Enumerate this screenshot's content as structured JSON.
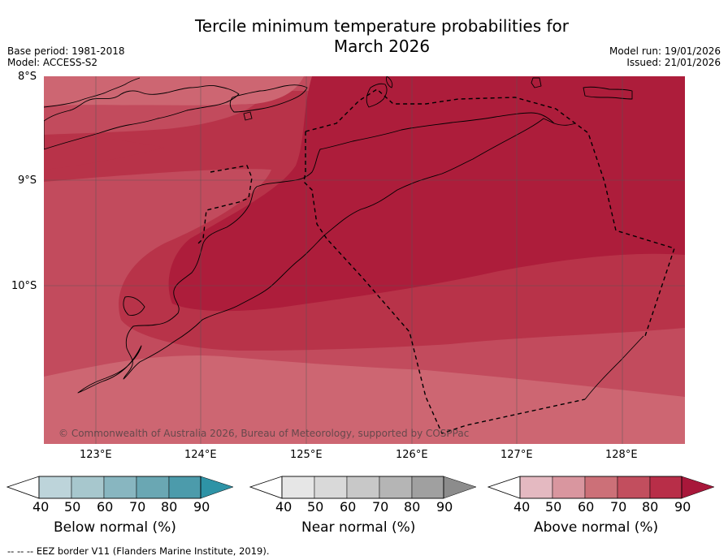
{
  "title": "Tercile minimum temperature probabilities for\nMarch 2026",
  "meta_left": [
    "Base period: 1981-2018",
    "Model: ACCESS-S2"
  ],
  "meta_right": [
    "Model run: 19/01/2026",
    "Issued: 21/01/2026"
  ],
  "latitude_labels": [
    "8°S",
    "9°S",
    "10°S"
  ],
  "longitude_labels": [
    "123°E",
    "124°E",
    "125°E",
    "126°E",
    "127°E",
    "128°E"
  ],
  "copyright": "© Commonwealth of Australia 2026, Bureau of Meteorology, supported by COSPPac",
  "legends": [
    {
      "label": "Below normal (%)",
      "ticks": [
        "40",
        "50",
        "60",
        "70",
        "80",
        "90"
      ],
      "colors": [
        "#bdd4da",
        "#a7c7cd",
        "#88b6c0",
        "#6aa7b3",
        "#4c9bab",
        "#2e93a6"
      ]
    },
    {
      "label": "Near normal (%)",
      "ticks": [
        "40",
        "50",
        "60",
        "70",
        "80",
        "90"
      ],
      "colors": [
        "#e6e6e6",
        "#d9d9d9",
        "#c8c8c8",
        "#b5b5b5",
        "#a0a0a0",
        "#8c8c8c"
      ]
    },
    {
      "label": "Above normal (%)",
      "ticks": [
        "40",
        "50",
        "60",
        "70",
        "80",
        "90"
      ],
      "colors": [
        "#e4b9c1",
        "#d9969f",
        "#cc7078",
        "#c24e5e",
        "#b82e48",
        "#a8173a"
      ]
    }
  ],
  "footnote": "--  --  -- EEZ border V11 (Flanders Marine Institute, 2019).",
  "map_colors": {
    "band_40": "#e4b9c1",
    "band_60": "#cd6672",
    "band_70": "#c24b5d",
    "band_80": "#b83349",
    "band_90": "#ad1d3b"
  }
}
